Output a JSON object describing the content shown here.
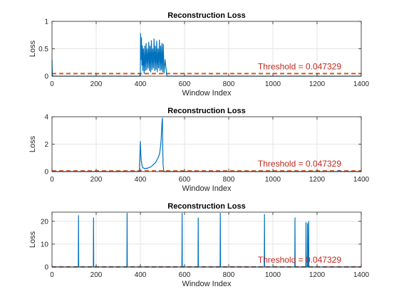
{
  "colors": {
    "series": "#0072BD",
    "threshold": "#D95319",
    "threshold_text": "#C0271D",
    "grid": "#E5E5E5",
    "axis": "#262626"
  },
  "chart_data": [
    {
      "type": "line",
      "title": "Reconstruction Loss",
      "xlabel": "Window Index",
      "ylabel": "Loss",
      "xlim": [
        0,
        1400
      ],
      "ylim": [
        0,
        1
      ],
      "xticks": [
        "0",
        "200",
        "400",
        "600",
        "800",
        "1000",
        "1200",
        "1400"
      ],
      "yticks": [
        "0",
        "0.5",
        "1"
      ],
      "grid": true,
      "threshold": {
        "value": 0.047329,
        "label": "Threshold = 0.047329"
      },
      "series": [
        {
          "x": [
            0,
            1,
            2,
            3,
            4,
            5,
            398,
            400,
            401,
            403,
            405,
            407,
            409,
            411,
            414,
            417,
            420,
            423,
            426,
            429,
            432,
            435,
            438,
            441,
            444,
            447,
            450,
            453,
            456,
            459,
            462,
            465,
            468,
            471,
            474,
            477,
            480,
            483,
            486,
            489,
            492,
            495,
            498,
            501,
            504,
            507,
            512,
            520,
            1400
          ],
          "y": [
            0.3,
            0.12,
            0.03,
            0.01,
            0,
            0,
            0,
            0.08,
            0.78,
            0.3,
            0.7,
            0.2,
            0.55,
            0.1,
            0.5,
            0.05,
            0.55,
            0.1,
            0.6,
            0.12,
            0.5,
            0.15,
            0.62,
            0.1,
            0.55,
            0.08,
            0.65,
            0.12,
            0.5,
            0.15,
            0.68,
            0.1,
            0.55,
            0.12,
            0.64,
            0.08,
            0.5,
            0.15,
            0.66,
            0.1,
            0.55,
            0.12,
            0.6,
            0.08,
            0.58,
            0.05,
            0.3,
            0,
            0
          ]
        }
      ]
    },
    {
      "type": "line",
      "title": "Reconstruction Loss",
      "xlabel": "Window Index",
      "ylabel": "Loss",
      "xlim": [
        0,
        1400
      ],
      "ylim": [
        0,
        4
      ],
      "xticks": [
        "0",
        "200",
        "400",
        "600",
        "800",
        "1000",
        "1200",
        "1400"
      ],
      "yticks": [
        "0",
        "2",
        "4"
      ],
      "grid": true,
      "threshold": {
        "value": 0.047329,
        "label": "Threshold = 0.047329"
      },
      "series": [
        {
          "x": [
            0,
            395,
            398,
            400,
            402,
            404,
            407,
            410,
            415,
            420,
            425,
            430,
            435,
            440,
            445,
            450,
            455,
            460,
            465,
            470,
            475,
            480,
            485,
            488,
            491,
            494,
            496,
            498,
            500,
            501,
            503,
            506,
            1295,
            1300,
            1305,
            1400
          ],
          "y": [
            0,
            0,
            1.2,
            2.2,
            1.3,
            0.8,
            0.5,
            0.3,
            0.25,
            0.2,
            0.25,
            0.2,
            0.28,
            0.3,
            0.32,
            0.38,
            0.45,
            0.52,
            0.6,
            0.7,
            0.85,
            1.0,
            1.2,
            1.4,
            1.8,
            2.3,
            3.0,
            3.6,
            3.9,
            2.0,
            0.5,
            0,
            0,
            0.1,
            0,
            0
          ]
        }
      ]
    },
    {
      "type": "line",
      "title": "Reconstruction Loss",
      "xlabel": "Window Index",
      "ylabel": "Loss",
      "xlim": [
        0,
        1400
      ],
      "ylim": [
        0,
        24
      ],
      "xticks": [
        "0",
        "200",
        "400",
        "600",
        "800",
        "1000",
        "1200",
        "1400"
      ],
      "yticks": [
        "0",
        "10",
        "20"
      ],
      "grid": true,
      "threshold": {
        "value": 0.047329,
        "label": "Threshold = 0.047329"
      },
      "series": [
        {
          "x": [
            0,
            119,
            120,
            121,
            187,
            188,
            189,
            339,
            340,
            341,
            588,
            589,
            590,
            661,
            662,
            663,
            761,
            762,
            763,
            961,
            962,
            963,
            1099,
            1100,
            1101,
            1149,
            1150,
            1151,
            1156,
            1157,
            1158,
            1161,
            1162,
            1163,
            1400
          ],
          "y": [
            0,
            0,
            22.5,
            0,
            0,
            21.5,
            0,
            0,
            23.5,
            0,
            0,
            23.5,
            0,
            0,
            21.5,
            0,
            0,
            23.5,
            0,
            0,
            23.0,
            0,
            0,
            21.5,
            0,
            0,
            19.5,
            0,
            0,
            19.0,
            0,
            0,
            20.0,
            0,
            0
          ]
        }
      ]
    }
  ]
}
